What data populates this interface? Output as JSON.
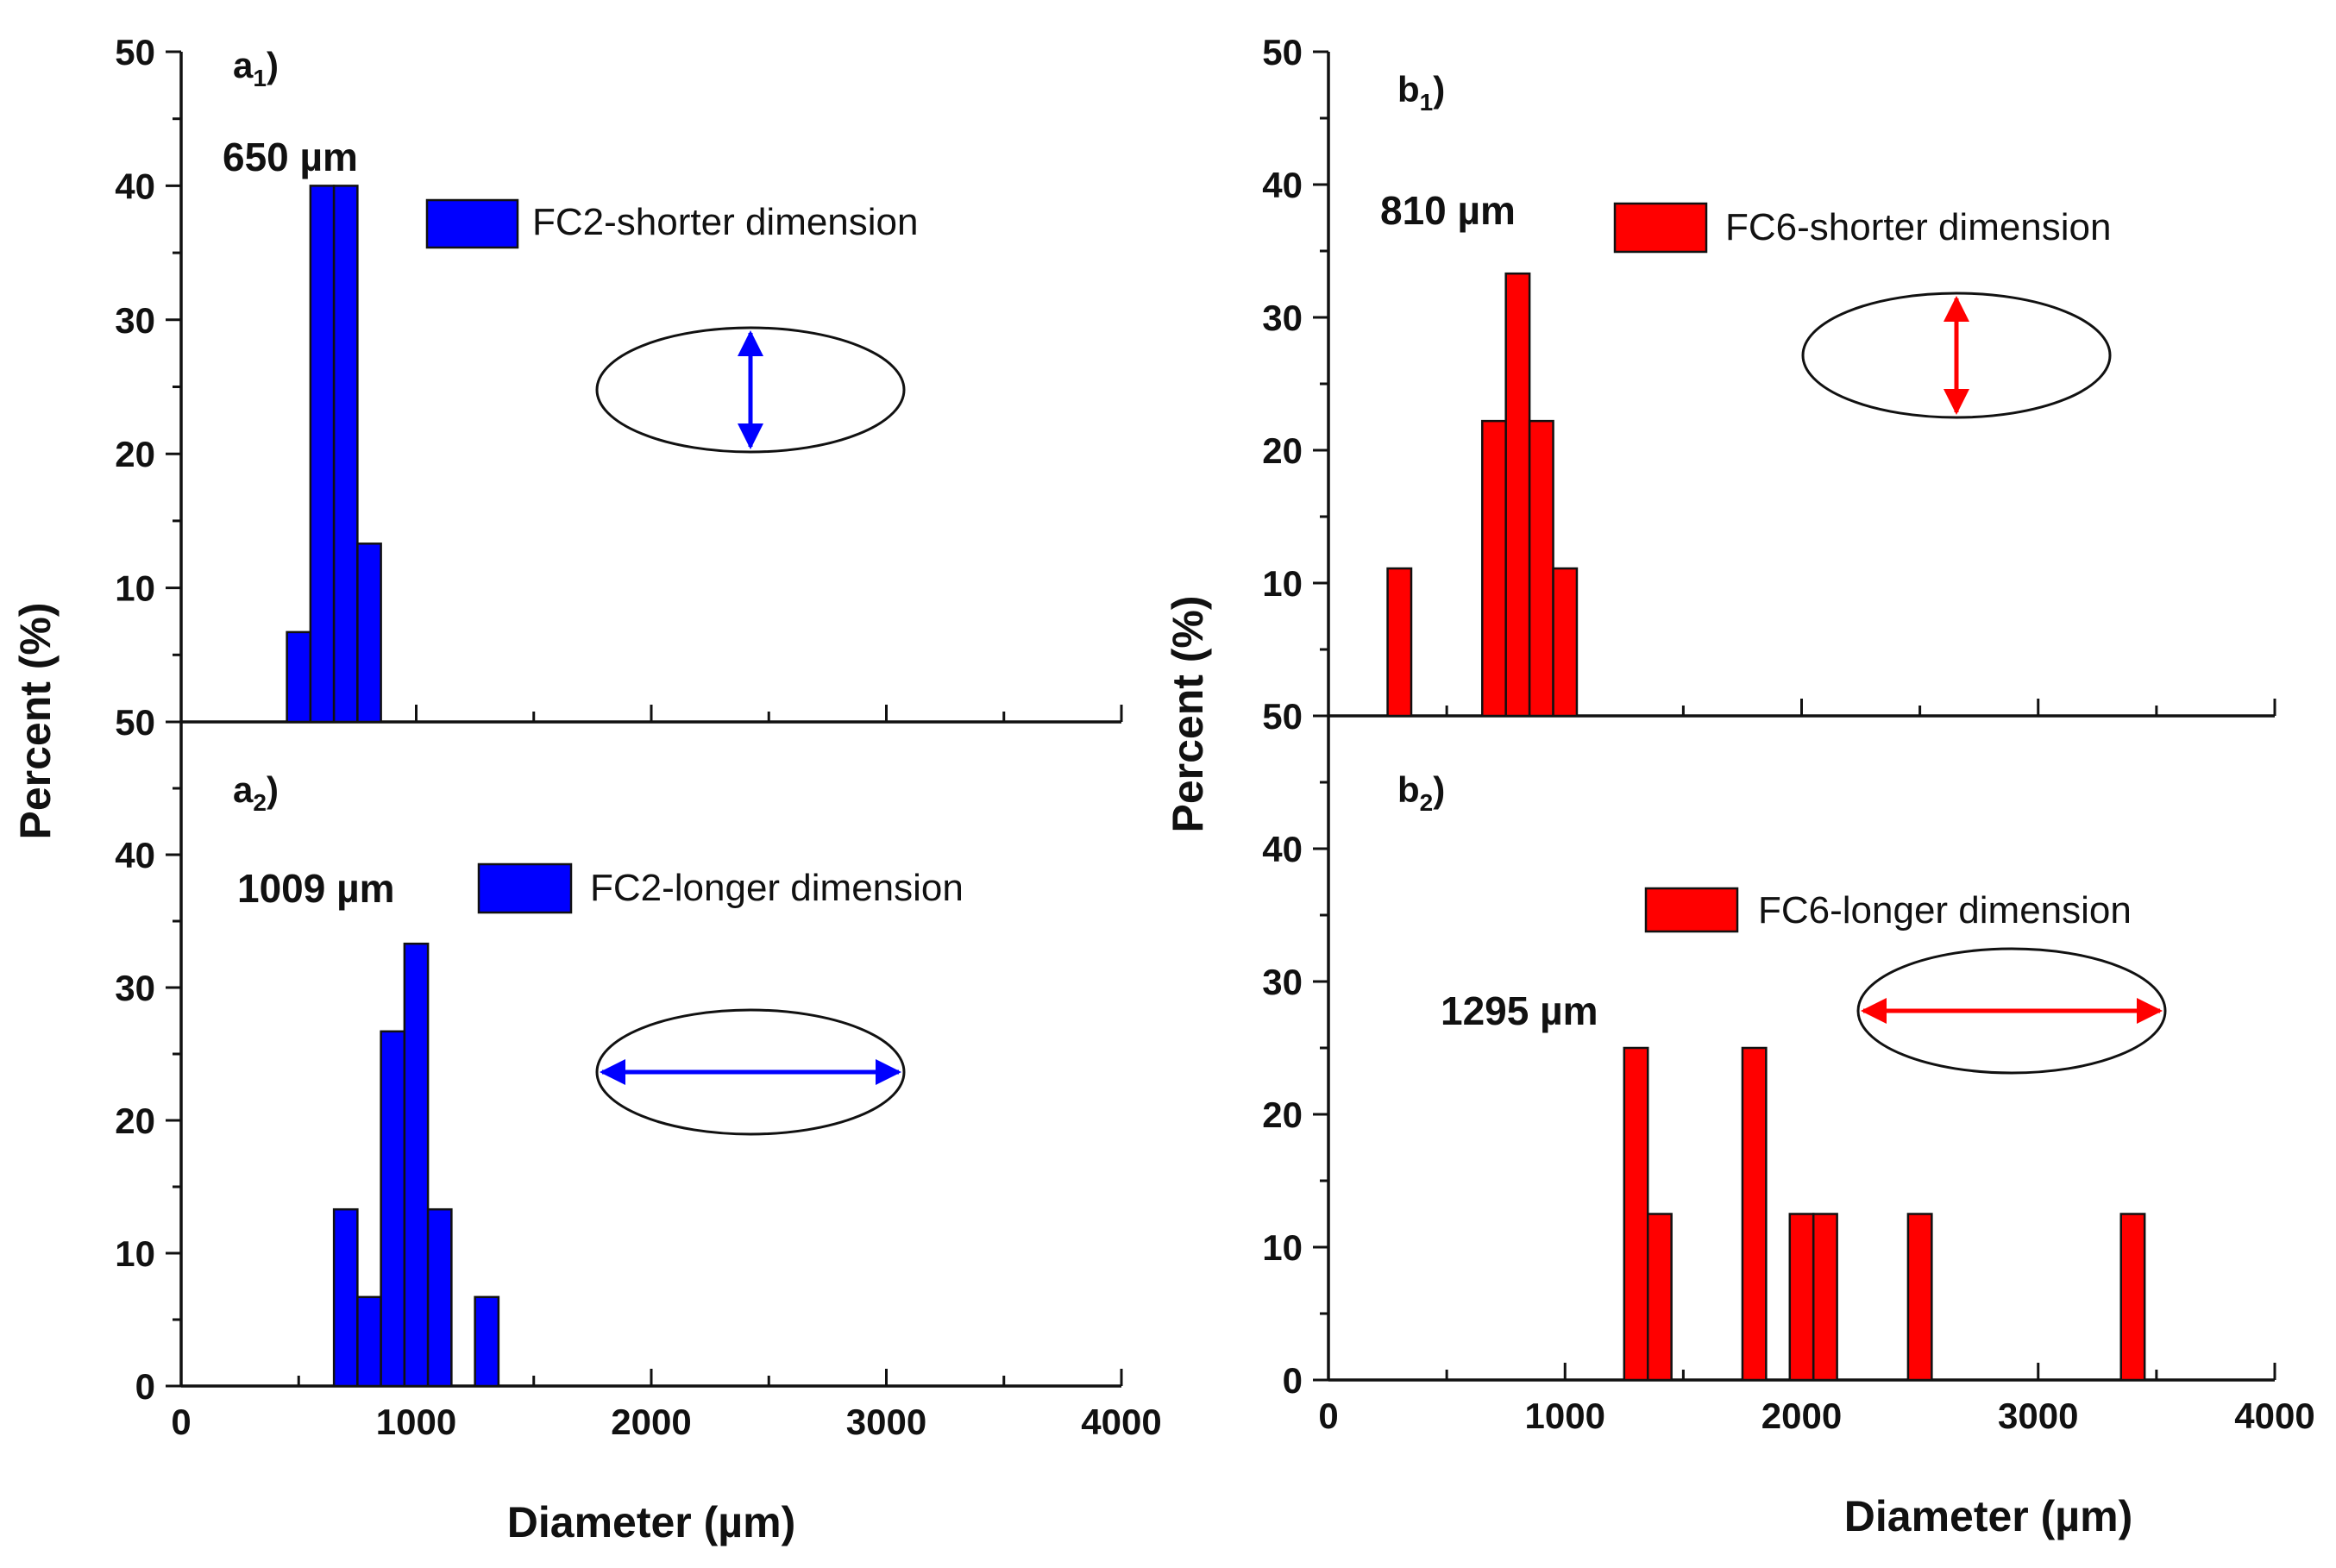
{
  "figure": {
    "x_axis_label": "Diameter (µm)",
    "y_axis_label": "Percent (%)"
  },
  "colors": {
    "blue": "#0000ff",
    "red": "#ff0000",
    "axis": "#111111"
  },
  "chart_data": [
    {
      "type": "bar",
      "panel": "a1",
      "panel_letter": "a",
      "panel_sub": "1",
      "title": "",
      "xlabel": "",
      "ylabel": "Percent (%)",
      "xlim": [
        0,
        4000
      ],
      "ylim": [
        0,
        50
      ],
      "bin_width": 100,
      "y_tick_labels": [
        "50",
        "40",
        "30",
        "20",
        "10"
      ],
      "x_tick_labels": [],
      "legend": "FC2-shorter dimension",
      "legend_position": "top-right",
      "annotation": "650 µm",
      "arrow": "vertical",
      "color": "#0000ff",
      "bins": [
        [
          450,
          550,
          6.7
        ],
        [
          550,
          650,
          40.0
        ],
        [
          650,
          750,
          40.0
        ],
        [
          750,
          850,
          13.3
        ]
      ]
    },
    {
      "type": "bar",
      "panel": "a2",
      "panel_letter": "a",
      "panel_sub": "2",
      "title": "",
      "xlabel": "Diameter (µm)",
      "ylabel": "Percent (%)",
      "xlim": [
        0,
        4000
      ],
      "ylim": [
        0,
        50
      ],
      "bin_width": 100,
      "y_tick_labels": [
        "50",
        "40",
        "30",
        "20",
        "10",
        "0"
      ],
      "x_tick_labels": [
        "0",
        "1000",
        "2000",
        "3000",
        "4000"
      ],
      "legend": "FC2-longer dimension",
      "legend_position": "top-right",
      "annotation": "1009 µm",
      "arrow": "horizontal",
      "color": "#0000ff",
      "bins": [
        [
          650,
          750,
          13.3
        ],
        [
          750,
          850,
          6.7
        ],
        [
          850,
          950,
          26.7
        ],
        [
          950,
          1050,
          33.3
        ],
        [
          1050,
          1150,
          13.3
        ],
        [
          1250,
          1350,
          6.7
        ]
      ]
    },
    {
      "type": "bar",
      "panel": "b1",
      "panel_letter": "b",
      "panel_sub": "1",
      "title": "",
      "xlabel": "",
      "ylabel": "Percent (%)",
      "xlim": [
        0,
        4000
      ],
      "ylim": [
        0,
        50
      ],
      "bin_width": 100,
      "y_tick_labels": [
        "50",
        "40",
        "30",
        "20",
        "10"
      ],
      "x_tick_labels": [],
      "legend": "FC6-shorter dimension",
      "legend_position": "top-right",
      "annotation": "810 µm",
      "arrow": "vertical",
      "color": "#ff0000",
      "bins": [
        [
          250,
          350,
          11.1
        ],
        [
          650,
          750,
          22.2
        ],
        [
          750,
          850,
          33.3
        ],
        [
          850,
          950,
          22.2
        ],
        [
          950,
          1050,
          11.1
        ]
      ]
    },
    {
      "type": "bar",
      "panel": "b2",
      "panel_letter": "b",
      "panel_sub": "2",
      "title": "",
      "xlabel": "Diameter (µm)",
      "ylabel": "Percent (%)",
      "xlim": [
        0,
        4000
      ],
      "ylim": [
        0,
        50
      ],
      "bin_width": 100,
      "y_tick_labels": [
        "50",
        "40",
        "30",
        "20",
        "10",
        "0"
      ],
      "x_tick_labels": [
        "0",
        "1000",
        "2000",
        "3000",
        "4000"
      ],
      "legend": "FC6-longer dimension",
      "legend_position": "top-right",
      "annotation": "1295 µm",
      "arrow": "horizontal",
      "color": "#ff0000",
      "bins": [
        [
          1250,
          1350,
          25.0
        ],
        [
          1350,
          1450,
          12.5
        ],
        [
          1750,
          1850,
          25.0
        ],
        [
          1950,
          2050,
          12.5
        ],
        [
          2050,
          2150,
          12.5
        ],
        [
          2450,
          2550,
          12.5
        ],
        [
          3350,
          3450,
          12.5
        ]
      ]
    }
  ]
}
